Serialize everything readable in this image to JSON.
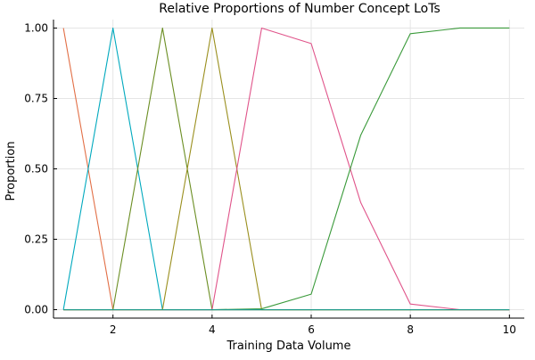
{
  "chart_data": {
    "type": "line",
    "title": "Relative Proportions of Number Concept LoTs",
    "xlabel": "Training Data Volume",
    "ylabel": "Proportion",
    "xlim": [
      0.8,
      10.3
    ],
    "ylim": [
      -0.03,
      1.03
    ],
    "xticks": [
      2,
      4,
      6,
      8,
      10
    ],
    "xtick_labels": [
      "2",
      "4",
      "6",
      "8",
      "10"
    ],
    "yticks": [
      0,
      0.25,
      0.5,
      0.75,
      1.0
    ],
    "ytick_labels": [
      "0.00",
      "0.25",
      "0.50",
      "0.75",
      "1.00"
    ],
    "grid": true,
    "legend": "none",
    "x": [
      1,
      2,
      3,
      4,
      5,
      6,
      7,
      8,
      9,
      10
    ],
    "series": [
      {
        "color": "#e26f46",
        "values": [
          1.0,
          0.0,
          0.0,
          0.0,
          0.0,
          0.0,
          0.0,
          0.0,
          0.0,
          0.0
        ]
      },
      {
        "color": "#00a9be",
        "values": [
          0.0,
          1.0,
          0.0,
          0.0,
          0.0,
          0.0,
          0.0,
          0.0,
          0.0,
          0.0
        ]
      },
      {
        "color": "#6b8e23",
        "values": [
          0.0,
          0.0,
          1.0,
          0.0,
          0.0,
          0.0,
          0.0,
          0.0,
          0.0,
          0.0
        ]
      },
      {
        "color": "#9a8f1e",
        "values": [
          0.0,
          0.0,
          0.0,
          1.0,
          0.0,
          0.0,
          0.0,
          0.0,
          0.0,
          0.0
        ]
      },
      {
        "color": "#e0548a",
        "values": [
          0.0,
          0.0,
          0.0,
          0.0,
          1.0,
          0.945,
          0.38,
          0.02,
          0.0,
          0.0
        ]
      },
      {
        "color": "#3a9a3a",
        "values": [
          0.0,
          0.0,
          0.0,
          0.0,
          0.003,
          0.055,
          0.62,
          0.98,
          1.0,
          1.0
        ]
      },
      {
        "color": "#1f9a8a",
        "values": [
          0.0,
          0.0,
          0.0,
          0.0,
          0.0,
          0.0,
          0.0,
          0.0,
          0.0,
          0.0
        ]
      }
    ]
  }
}
